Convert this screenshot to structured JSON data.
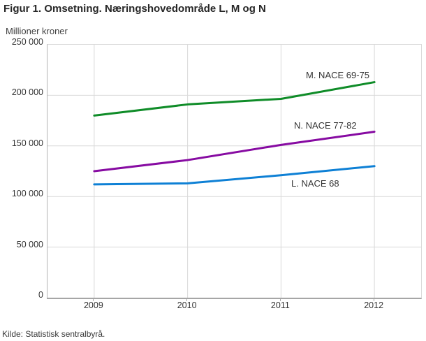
{
  "title": "Figur 1. Omsetning. Næringshovedområde L, M og N",
  "y_axis_title": "Millioner kroner",
  "source": "Kilde: Statistisk sentralbyrå.",
  "colors": {
    "grid": "#d9d9d9",
    "axis_bottom": "#a6a6a6",
    "axis_left": "#b3b3b3",
    "text": "#333333"
  },
  "chart_data": {
    "type": "line",
    "title": "Figur 1. Omsetning. Næringshovedområde L, M og N",
    "ylabel": "Millioner kroner",
    "xlabel": "",
    "categories": [
      "2009",
      "2010",
      "2011",
      "2012"
    ],
    "series": [
      {
        "name": "M. NACE 69-75",
        "color": "#0f8c28",
        "values": [
          180000,
          191000,
          196500,
          213000
        ]
      },
      {
        "name": "N. NACE 77-82",
        "color": "#870ba2",
        "values": [
          125000,
          136000,
          151000,
          164000
        ]
      },
      {
        "name": "L. NACE 68",
        "color": "#0e80d5",
        "values": [
          112000,
          113000,
          121000,
          130000
        ]
      }
    ],
    "ylim": [
      0,
      250000
    ],
    "ytick_step": 50000,
    "yticks": [
      0,
      50000,
      100000,
      150000,
      200000,
      250000
    ],
    "ytick_labels": [
      "0",
      "50 000",
      "100 000",
      "150 000",
      "200 000",
      "250 000"
    ],
    "grid": true,
    "legend_position": "inline-labels"
  }
}
